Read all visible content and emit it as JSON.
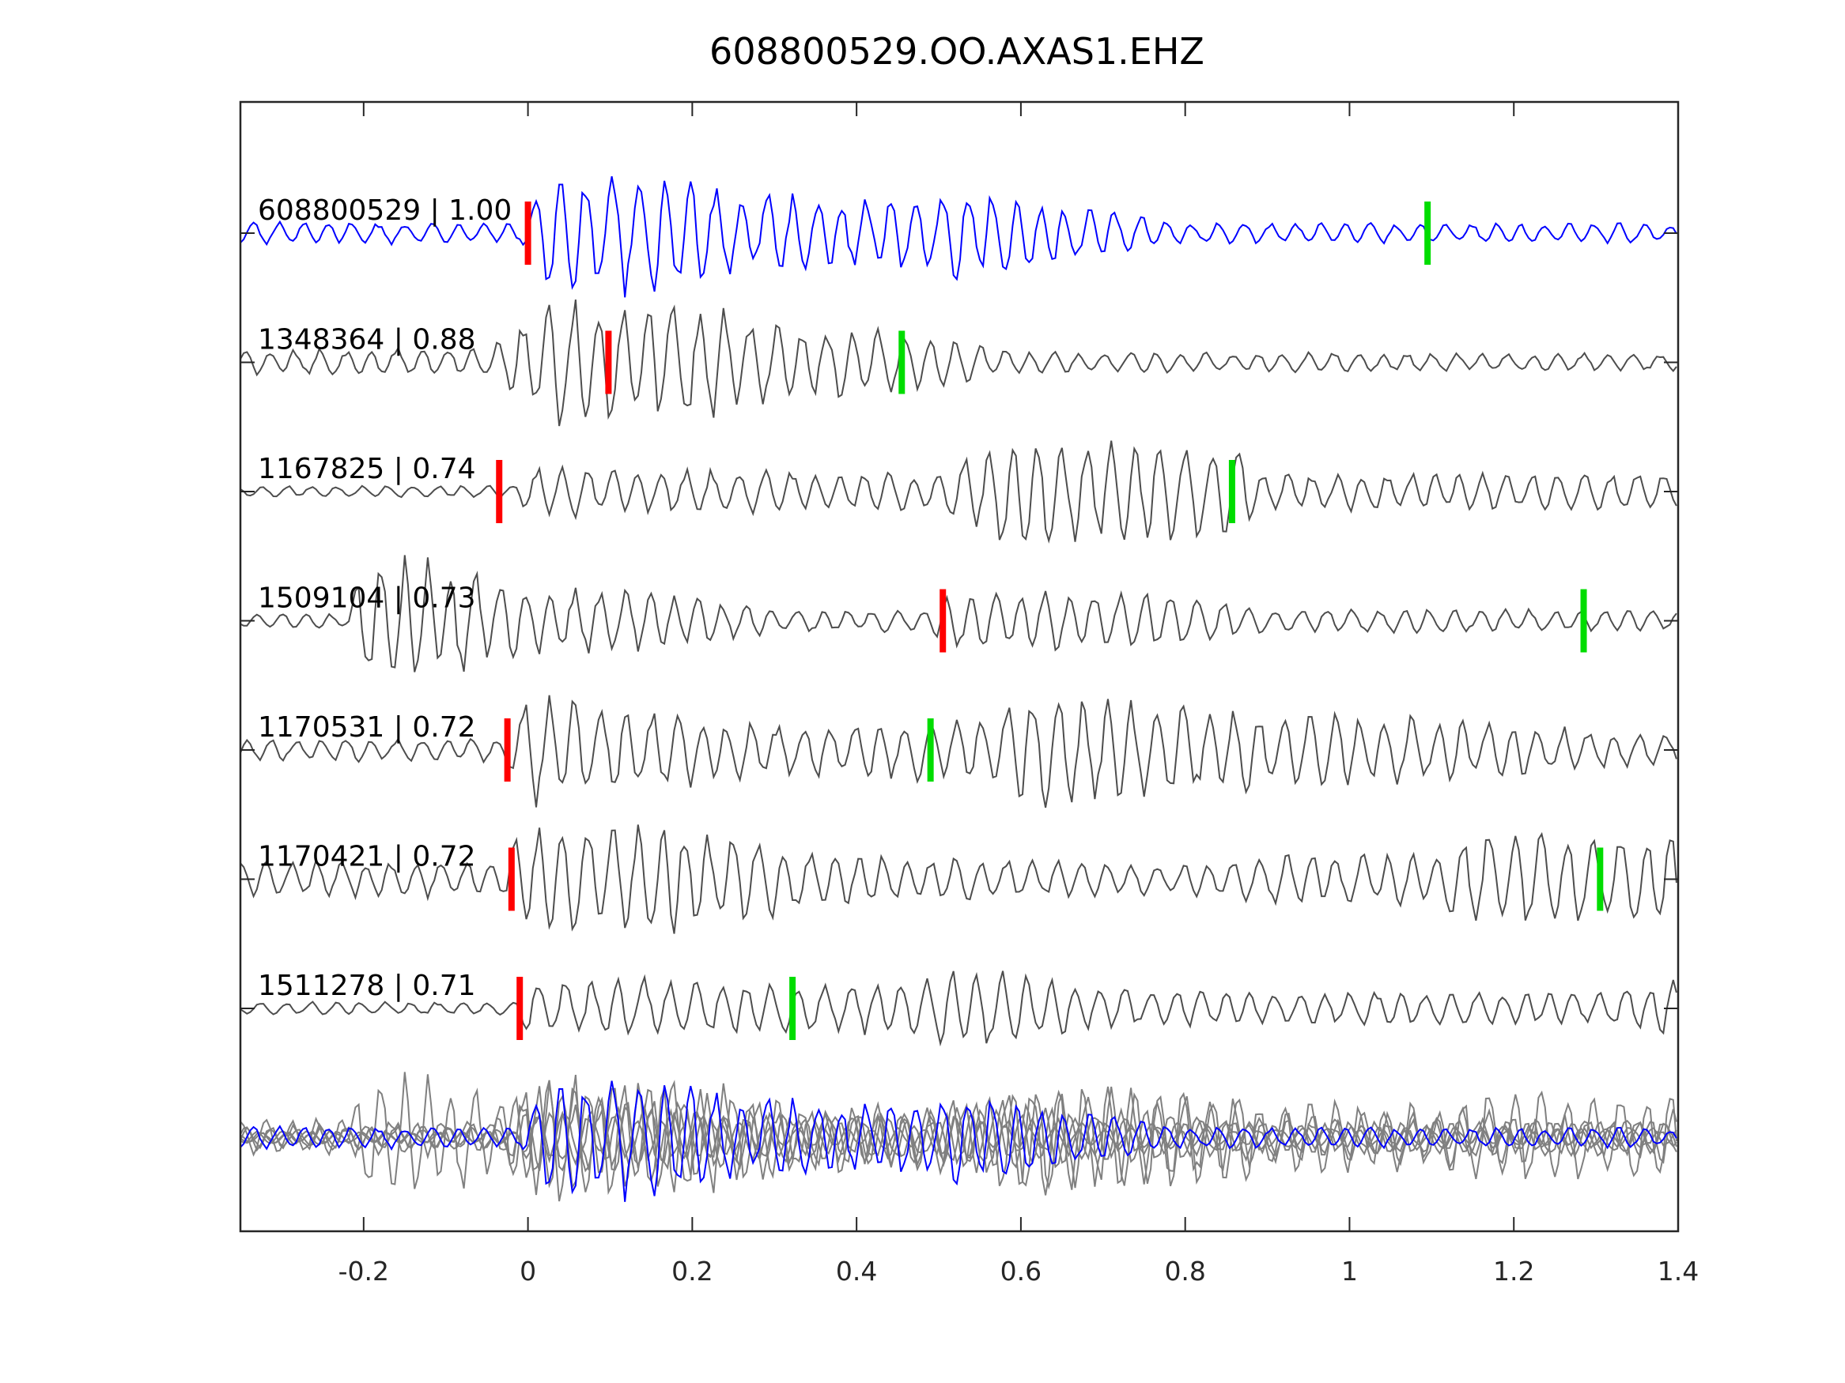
{
  "chart_data": {
    "type": "line",
    "title": "608800529.OO.AXAS1.EHZ",
    "xlabel": "",
    "ylabel": "",
    "xlim": [
      -0.35,
      1.4
    ],
    "xticks": [
      -0.2,
      0,
      0.2,
      0.4,
      0.6,
      0.8,
      1,
      1.2,
      1.4
    ],
    "xtick_labels": [
      "-0.2",
      "0",
      "0.2",
      "0.4",
      "0.6",
      "0.8",
      "1",
      "1.2",
      "1.4"
    ],
    "grid": false,
    "colors": {
      "template": "#0000ff",
      "trace": "#4d4d4d",
      "stack": "#808080",
      "p_pick": "#ff0000",
      "s_pick": "#00dd00",
      "axis": "#262626"
    },
    "dominant_period_s": 0.03,
    "traces": [
      {
        "label": "608800529 | 1.00",
        "id": "608800529",
        "cc": "1.00",
        "template": true,
        "p_pick": 0.0,
        "s_pick": 1.095,
        "envelope": [
          [
            -0.35,
            0.09
          ],
          [
            -0.01,
            0.08
          ],
          [
            0.02,
            0.5
          ],
          [
            0.2,
            0.5
          ],
          [
            0.25,
            0.3
          ],
          [
            0.5,
            0.28
          ],
          [
            0.52,
            0.38
          ],
          [
            0.6,
            0.3
          ],
          [
            0.7,
            0.2
          ],
          [
            0.8,
            0.08
          ],
          [
            1.4,
            0.08
          ]
        ]
      },
      {
        "label": "1348364 | 0.88",
        "id": "1348364",
        "cc": "0.88",
        "p_pick": 0.098,
        "s_pick": 0.455,
        "envelope": [
          [
            -0.35,
            0.1
          ],
          [
            -0.05,
            0.12
          ],
          [
            0.0,
            0.4
          ],
          [
            0.05,
            0.55
          ],
          [
            0.2,
            0.5
          ],
          [
            0.3,
            0.3
          ],
          [
            0.5,
            0.22
          ],
          [
            0.6,
            0.08
          ],
          [
            1.4,
            0.07
          ]
        ]
      },
      {
        "label": "1167825 | 0.74",
        "id": "1167825",
        "cc": "0.74",
        "p_pick": -0.035,
        "s_pick": 0.857,
        "envelope": [
          [
            -0.35,
            0.04
          ],
          [
            -0.02,
            0.05
          ],
          [
            0.0,
            0.2
          ],
          [
            0.5,
            0.15
          ],
          [
            0.55,
            0.3
          ],
          [
            0.59,
            0.55
          ],
          [
            0.65,
            0.4
          ],
          [
            0.85,
            0.4
          ],
          [
            0.9,
            0.15
          ],
          [
            1.4,
            0.15
          ]
        ]
      },
      {
        "label": "1509104 | 0.73",
        "id": "1509104",
        "cc": "0.73",
        "p_pick": 0.505,
        "s_pick": 1.285,
        "envelope": [
          [
            -0.35,
            0.06
          ],
          [
            -0.22,
            0.06
          ],
          [
            -0.2,
            0.5
          ],
          [
            -0.1,
            0.5
          ],
          [
            0.0,
            0.3
          ],
          [
            0.2,
            0.2
          ],
          [
            0.3,
            0.1
          ],
          [
            0.48,
            0.08
          ],
          [
            0.52,
            0.25
          ],
          [
            0.8,
            0.22
          ],
          [
            0.9,
            0.1
          ],
          [
            1.4,
            0.08
          ]
        ]
      },
      {
        "label": "1170531 | 0.72",
        "id": "1170531",
        "cc": "0.72",
        "p_pick": -0.025,
        "s_pick": 0.49,
        "envelope": [
          [
            -0.35,
            0.08
          ],
          [
            -0.03,
            0.1
          ],
          [
            0.0,
            0.45
          ],
          [
            0.1,
            0.35
          ],
          [
            0.3,
            0.22
          ],
          [
            0.55,
            0.25
          ],
          [
            0.6,
            0.45
          ],
          [
            0.8,
            0.35
          ],
          [
            1.1,
            0.25
          ],
          [
            1.4,
            0.12
          ]
        ]
      },
      {
        "label": "1170421 | 0.72",
        "id": "1170421",
        "cc": "0.72",
        "p_pick": -0.02,
        "s_pick": 1.305,
        "envelope": [
          [
            -0.35,
            0.15
          ],
          [
            -0.03,
            0.15
          ],
          [
            0.0,
            0.45
          ],
          [
            0.25,
            0.4
          ],
          [
            0.35,
            0.2
          ],
          [
            0.8,
            0.12
          ],
          [
            0.9,
            0.2
          ],
          [
            1.1,
            0.2
          ],
          [
            1.15,
            0.4
          ],
          [
            1.4,
            0.35
          ]
        ]
      },
      {
        "label": "1511278 | 0.71",
        "id": "1511278",
        "cc": "0.71",
        "p_pick": -0.01,
        "s_pick": 0.322,
        "envelope": [
          [
            -0.35,
            0.05
          ],
          [
            -0.02,
            0.05
          ],
          [
            0.0,
            0.25
          ],
          [
            0.45,
            0.2
          ],
          [
            0.52,
            0.35
          ],
          [
            0.6,
            0.3
          ],
          [
            0.7,
            0.15
          ],
          [
            1.3,
            0.12
          ],
          [
            1.4,
            0.25
          ]
        ]
      }
    ],
    "stack": {
      "description_visible": false,
      "includes": "all traces overlaid, template in blue"
    }
  }
}
